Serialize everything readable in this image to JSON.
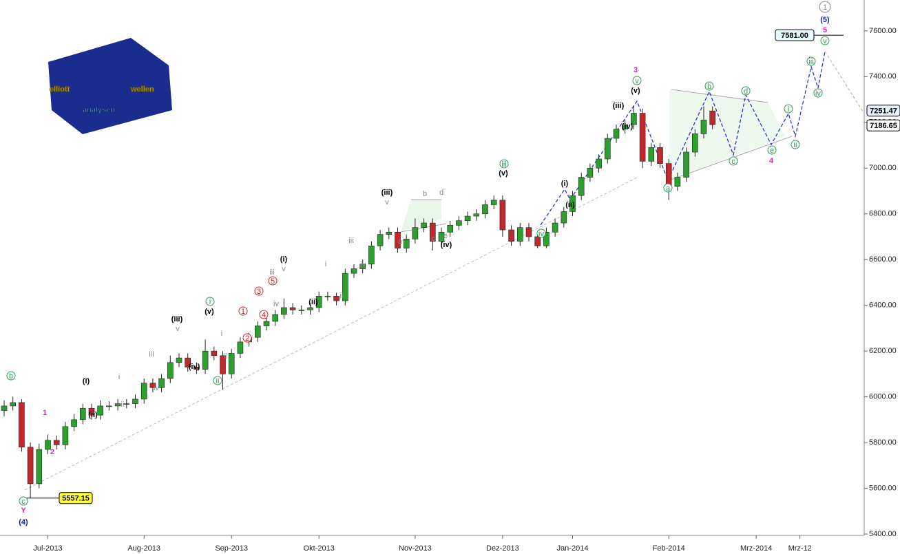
{
  "chart_data": {
    "type": "candlestick",
    "categories": [
      null,
      null,
      null,
      null,
      null,
      "Jul-2013",
      null,
      null,
      null,
      null,
      null,
      null,
      null,
      null,
      null,
      null,
      "Aug-2013",
      null,
      null,
      null,
      null,
      null,
      null,
      null,
      null,
      null,
      "Sep-2013",
      null,
      null,
      null,
      null,
      null,
      null,
      null,
      null,
      null,
      "Okt-2013",
      null,
      null,
      null,
      null,
      null,
      null,
      null,
      null,
      null,
      null,
      "Nov-2013",
      null,
      null,
      null,
      null,
      null,
      null,
      null,
      null,
      null,
      "Dez-2013",
      null,
      null,
      null,
      null,
      null,
      null,
      null,
      "Jan-2014",
      null,
      null,
      null,
      null,
      null,
      null,
      null,
      null,
      null,
      null,
      "Feb-2014",
      null,
      null,
      null,
      null,
      null,
      null,
      null,
      null,
      null,
      "Mrz-2014",
      null,
      null,
      null,
      null,
      "Mrz-12",
      null,
      null,
      null,
      null,
      null,
      null,
      null
    ],
    "open": [
      5940,
      5960,
      5975,
      5780,
      5620,
      5770,
      5810,
      5790,
      5870,
      5900,
      5950,
      5920,
      5960,
      5960,
      5970,
      5970,
      5990,
      6060,
      6040,
      6080,
      6150,
      6170,
      6130,
      6120,
      6200,
      6180,
      6100,
      6190,
      6240,
      6260,
      6310,
      6330,
      6360,
      6390,
      6380,
      6380,
      6390,
      6440,
      6440,
      6420,
      6540,
      6560,
      6580,
      6660,
      6710,
      6720,
      6650,
      6690,
      6740,
      6760,
      6680,
      6720,
      6750,
      6770,
      6790,
      6800,
      6840,
      6860,
      6730,
      6680,
      6740,
      6700,
      6660,
      6720,
      6760,
      6810,
      6880,
      6960,
      7000,
      7040,
      7130,
      7170,
      7190,
      7240,
      7030,
      7090,
      7020,
      6920,
      6960,
      7070,
      7150,
      7250,
      null,
      null,
      null,
      null,
      null,
      null,
      null,
      null,
      null,
      null,
      null,
      null,
      null,
      null,
      null,
      null,
      null
    ],
    "high": [
      5985,
      6000,
      5990,
      5800,
      5795,
      5835,
      5830,
      5890,
      5925,
      5970,
      5970,
      5985,
      5980,
      5990,
      5990,
      6010,
      6080,
      6080,
      6100,
      6180,
      6190,
      6190,
      6150,
      6250,
      6220,
      6200,
      6210,
      6260,
      6280,
      6330,
      6350,
      6380,
      6430,
      6410,
      6400,
      6410,
      6460,
      6460,
      6455,
      6560,
      6580,
      6600,
      6680,
      6730,
      6740,
      6740,
      6710,
      6780,
      6780,
      6780,
      6740,
      6770,
      6790,
      6810,
      6820,
      6860,
      6880,
      6880,
      6750,
      6760,
      6760,
      6720,
      6740,
      6780,
      6830,
      6900,
      6980,
      7020,
      7060,
      7150,
      7190,
      7210,
      7270,
      7260,
      7110,
      7110,
      7040,
      6980,
      7090,
      7170,
      7270,
      7270,
      null,
      null,
      null,
      null,
      null,
      null,
      null,
      null,
      null,
      null,
      null,
      null,
      null,
      null,
      null,
      null,
      null
    ],
    "low": [
      5915,
      5940,
      5760,
      5557.15,
      5600,
      5750,
      5770,
      5770,
      5850,
      5880,
      5900,
      5900,
      5940,
      5940,
      5950,
      5950,
      5970,
      6020,
      6020,
      6060,
      6130,
      6110,
      6100,
      6100,
      6160,
      6030,
      6080,
      6170,
      6220,
      6240,
      6290,
      6310,
      6340,
      6360,
      6360,
      6360,
      6370,
      6420,
      6400,
      6400,
      6520,
      6540,
      6560,
      6640,
      6690,
      6630,
      6630,
      6670,
      6720,
      6640,
      6660,
      6700,
      6730,
      6750,
      6770,
      6780,
      6820,
      6700,
      6660,
      6660,
      6680,
      6650,
      6650,
      6700,
      6740,
      6790,
      6860,
      6940,
      6980,
      7020,
      7110,
      7150,
      7170,
      7000,
      7010,
      7000,
      6860,
      6900,
      6940,
      7050,
      7130,
      7170,
      null,
      null,
      null,
      null,
      null,
      null,
      null,
      null,
      null,
      null,
      null,
      null,
      null,
      null,
      null,
      null,
      null
    ],
    "close": [
      5960,
      5975,
      5780,
      5620,
      5770,
      5810,
      5790,
      5870,
      5900,
      5950,
      5920,
      5960,
      5960,
      5970,
      5970,
      5990,
      6060,
      6040,
      6080,
      6150,
      6170,
      6130,
      6120,
      6200,
      6180,
      6100,
      6190,
      6240,
      6260,
      6310,
      6330,
      6360,
      6390,
      6380,
      6380,
      6390,
      6440,
      6440,
      6420,
      6540,
      6560,
      6580,
      6660,
      6710,
      6720,
      6650,
      6690,
      6740,
      6760,
      6680,
      6720,
      6750,
      6770,
      6790,
      6800,
      6840,
      6860,
      6730,
      6680,
      6740,
      6700,
      6660,
      6720,
      6760,
      6810,
      6880,
      6960,
      7000,
      7040,
      7130,
      7170,
      7190,
      7240,
      7030,
      7090,
      7020,
      6920,
      6960,
      7070,
      7150,
      7210,
      7190,
      null,
      null,
      null,
      null,
      null,
      null,
      null,
      null,
      null,
      null,
      null,
      null,
      null,
      null,
      null,
      null,
      null
    ],
    "up_color": "#2ca02c",
    "down_color": "#c0282c",
    "ylim": [
      5394,
      7735
    ],
    "yticks": [
      {
        "value": 5400,
        "label": "5400.00"
      },
      {
        "value": 5600,
        "label": "5600.00"
      },
      {
        "value": 5800,
        "label": "5800.00"
      },
      {
        "value": 6000,
        "label": "6000.00"
      },
      {
        "value": 6200,
        "label": "6200.00"
      },
      {
        "value": 6400,
        "label": "6400.00"
      },
      {
        "value": 6600,
        "label": "6600.00"
      },
      {
        "value": 6800,
        "label": "6800.00"
      },
      {
        "value": 7000,
        "label": "7000.00"
      },
      {
        "value": 7200,
        "label": "7200.00"
      },
      {
        "value": 7400,
        "label": "7400.00"
      },
      {
        "value": 7600,
        "label": "7600.00"
      }
    ],
    "price_tags": [
      {
        "value": 5557.15,
        "label": "5557.15"
      },
      {
        "value": 7581,
        "label": "7581.00"
      },
      {
        "value": 7251.47,
        "label": "7251.47"
      },
      {
        "value": 7186.65,
        "label": "7186.65"
      }
    ],
    "wave_labels": [
      {
        "style": "green-circle",
        "labels": [
          "b",
          "c",
          "i",
          "ii",
          "iii",
          "iv",
          "v",
          "a",
          "b",
          "c",
          "d",
          "e",
          "i",
          "ii",
          "iii",
          "iv",
          "v"
        ]
      },
      {
        "style": "gray-circle",
        "labels": [
          "1"
        ]
      },
      {
        "style": "pink",
        "labels": [
          "Y",
          "1",
          "2",
          "3",
          "4",
          "5"
        ]
      },
      {
        "style": "blue",
        "labels": [
          "(4)",
          "(5)"
        ]
      },
      {
        "style": "black",
        "labels": [
          "(i)",
          "(ii)",
          "(iii)",
          "(iv)",
          "(v)",
          "(i)",
          "(ii)",
          "(iii)",
          "(iv)",
          "(v)",
          "(i)",
          "(ii)",
          "(iii)",
          "(iv)",
          "(v)"
        ]
      },
      {
        "style": "gray",
        "labels": [
          "i",
          "ii",
          "iii",
          "iv",
          "v",
          "i",
          "ii",
          "iii",
          "iv",
          "v",
          "i",
          "ii",
          "iii",
          "iv",
          "v",
          "a",
          "b",
          "c",
          "d",
          "e"
        ]
      },
      {
        "style": "red-circle",
        "labels": [
          "1",
          "2",
          "3",
          "4",
          "5"
        ]
      }
    ],
    "logo": [
      "elliott",
      "wellen",
      "analysen"
    ]
  }
}
